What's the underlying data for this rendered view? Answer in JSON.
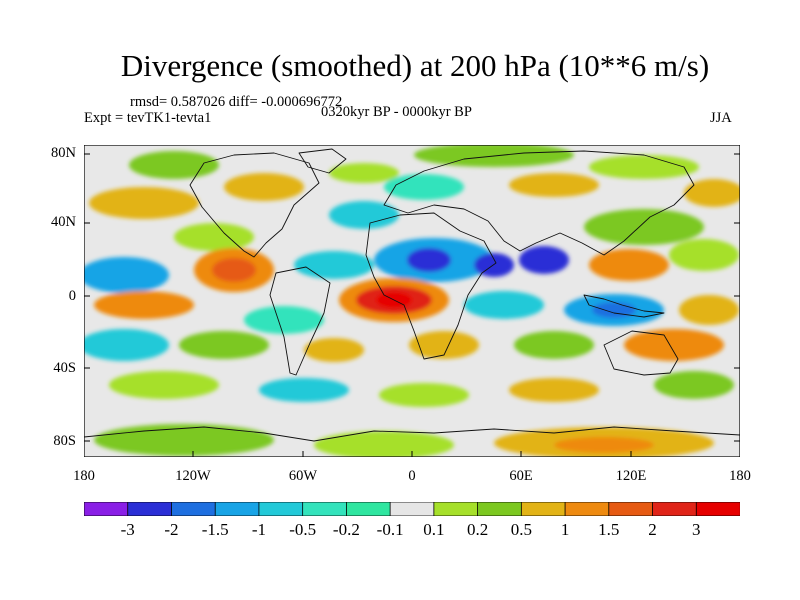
{
  "title": "Divergence (smoothed) at 200 hPa (10**6 m/s)",
  "stats": "rmsd= 0.587026 diff= -0.000696772",
  "experiment": "Expt = tevTK1-tevta1",
  "period": "0320kyr BP - 0000kyr BP",
  "season": "JJA",
  "lat_labels": [
    "80N",
    "40N",
    "0",
    "40S",
    "80S"
  ],
  "lon_labels": [
    "180",
    "120W",
    "60W",
    "0",
    "60E",
    "120E",
    "180"
  ],
  "colorbar": {
    "labels": [
      "-3",
      "-2",
      "-1.5",
      "-1",
      "-0.5",
      "-0.2",
      "-0.1",
      "0.1",
      "0.2",
      "0.5",
      "1",
      "1.5",
      "2",
      "3"
    ],
    "colors": [
      "#8a1fe6",
      "#2b2fd6",
      "#1e6fe0",
      "#19a4e6",
      "#22c9d8",
      "#33e3bc",
      "#2fe6a0",
      "#e6e6e6",
      "#a6e02a",
      "#7cc820",
      "#e2b316",
      "#ee8a10",
      "#e65a12",
      "#e02418",
      "#e60000"
    ]
  },
  "colors": {
    "ocean_bg": "#e8e8e8",
    "coast": "#111111"
  }
}
